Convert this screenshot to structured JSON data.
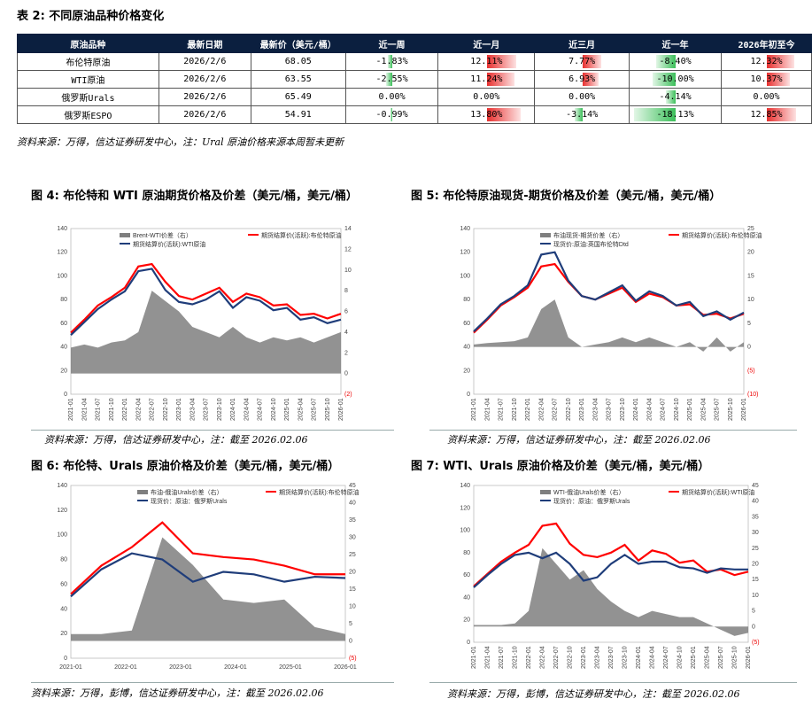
{
  "table": {
    "title": "表 2:  不同原油品种价格变化",
    "headers": [
      "原油品种",
      "最新日期",
      "最新价（美元/桶）",
      "近一周",
      "近一月",
      "近三月",
      "近一年",
      "2026年初至今"
    ],
    "rows": [
      {
        "name": "布伦特原油",
        "date": "2026/2/6",
        "price": "68.05",
        "changes": [
          "-1.83%",
          "12.11%",
          "7.77%",
          "-8.40%",
          "12.32%"
        ],
        "values": [
          -1.83,
          12.11,
          7.77,
          -8.4,
          12.32
        ]
      },
      {
        "name": "WTI原油",
        "date": "2026/2/6",
        "price": "63.55",
        "changes": [
          "-2.55%",
          "11.24%",
          "6.93%",
          "-10.00%",
          "10.37%"
        ],
        "values": [
          -2.55,
          11.24,
          6.93,
          -10.0,
          10.37
        ]
      },
      {
        "name": "俄罗斯Urals",
        "date": "2026/2/6",
        "price": "65.49",
        "changes": [
          "0.00%",
          "0.00%",
          "0.00%",
          "-4.14%",
          "0.00%"
        ],
        "values": [
          0,
          0,
          0,
          -4.14,
          0
        ]
      },
      {
        "name": "俄罗斯ESPO",
        "date": "2026/2/6",
        "price": "54.91",
        "changes": [
          "-0.99%",
          "13.80%",
          "-3.14%",
          "-18.13%",
          "12.85%"
        ],
        "values": [
          -0.99,
          13.8,
          -3.14,
          -18.13,
          12.85
        ]
      }
    ],
    "colors": {
      "positive": "#e8302f",
      "negative": "#3cbf5a"
    },
    "note": "资料来源：万得，信达证券研发中心，注：Ural 原油价格来源本周暂未更新"
  },
  "figures": [
    {
      "title": "图 4:  布伦特和  WTI  原油期货价格及价差（美元/桶，美元/桶）",
      "source": "资料来源：万得，信达证券研发中心，注：截至 2026.02.06"
    },
    {
      "title": "图 5:  布伦特原油现货-期货价格及价差（美元/桶，美元/桶）",
      "source": "资料来源：万得，信达证券研发中心，注：截至 2026.02.06"
    },
    {
      "title": "图 6:  布伦特、Urals 原油价格及价差（美元/桶，美元/桶）",
      "source": "资料来源：万得，彭博，信达证券研发中心，注：截至 2026.02.06"
    },
    {
      "title": "图 7:  WTI、Urals 原油价格及价差（美元/桶，美元/桶）",
      "source": "资料来源：万得，彭博，信达证券研发中心，注：截至 2026.02.06"
    }
  ],
  "chart_data": [
    {
      "type": "line",
      "legend": [
        "Brent-WTI价差（右）",
        "期货结算价(活跃):布伦特原油",
        "期货结算价(活跃):WTI原油"
      ],
      "colors": [
        "#7f7f7f",
        "#ff0000",
        "#1f3d7a"
      ],
      "ylim": [
        0,
        140
      ],
      "yticks": [
        "0",
        "20",
        "40",
        "60",
        "80",
        "100",
        "120",
        "140"
      ],
      "y2ticks": [
        "(2)",
        "0",
        "2",
        "4",
        "6",
        "8",
        "10",
        "12",
        "14"
      ],
      "xticks": [
        "2021-01",
        "2021-04",
        "2021-07",
        "2021-10",
        "2022-01",
        "2022-04",
        "2022-07",
        "2022-10",
        "2023-01",
        "2023-04",
        "2023-07",
        "2023-10",
        "2024-01",
        "2024-04",
        "2024-07",
        "2024-10",
        "2025-01",
        "2025-04",
        "2025-07",
        "2025-10",
        "2026-01"
      ],
      "series": [
        {
          "name": "期货结算价(活跃):布伦特原油",
          "values": [
            52,
            63,
            75,
            82,
            90,
            108,
            110,
            95,
            83,
            80,
            85,
            90,
            78,
            85,
            82,
            75,
            76,
            67,
            68,
            64,
            68
          ]
        },
        {
          "name": "期货结算价(活跃):WTI原油",
          "values": [
            50,
            61,
            72,
            80,
            87,
            104,
            106,
            88,
            78,
            76,
            80,
            87,
            73,
            82,
            79,
            71,
            73,
            63,
            65,
            60,
            63
          ]
        },
        {
          "name": "Brent-WTI价差（右）",
          "values": [
            2.5,
            2.8,
            2.5,
            3.0,
            3.2,
            4.0,
            8.0,
            7.0,
            6.0,
            4.5,
            4.0,
            3.5,
            4.5,
            3.5,
            3.0,
            3.5,
            3.2,
            3.5,
            3.0,
            3.5,
            4.0
          ]
        }
      ]
    },
    {
      "type": "line",
      "legend": [
        "布油现货-期货价差（右）",
        "期货结算价(活跃):布伦特原油",
        "现货价:原油:英国布伦特Dtd"
      ],
      "colors": [
        "#7f7f7f",
        "#ff0000",
        "#1f3d7a"
      ],
      "ylim": [
        0,
        140
      ],
      "yticks": [
        "0",
        "20",
        "40",
        "60",
        "80",
        "100",
        "120",
        "140"
      ],
      "y2ticks": [
        "(10)",
        "(5)",
        "0",
        "5",
        "10",
        "15",
        "20",
        "25"
      ],
      "xticks": [
        "2021-01",
        "2021-04",
        "2021-07",
        "2021-10",
        "2022-01",
        "2022-04",
        "2022-07",
        "2022-10",
        "2023-01",
        "2023-04",
        "2023-07",
        "2023-10",
        "2024-01",
        "2024-04",
        "2024-07",
        "2024-10",
        "2025-01",
        "2025-04",
        "2025-07",
        "2025-10",
        "2026-01"
      ],
      "series": [
        {
          "name": "期货结算价(活跃):布伦特原油",
          "values": [
            52,
            63,
            75,
            82,
            90,
            108,
            110,
            95,
            83,
            80,
            85,
            90,
            78,
            85,
            82,
            75,
            76,
            67,
            68,
            64,
            68
          ]
        },
        {
          "name": "现货价:原油:英国布伦特Dtd",
          "values": [
            53,
            64,
            76,
            83,
            92,
            118,
            120,
            96,
            83,
            80,
            86,
            92,
            79,
            87,
            83,
            75,
            78,
            66,
            70,
            63,
            69
          ]
        },
        {
          "name": "布油现货-期货价差（右）",
          "values": [
            0.5,
            0.8,
            1,
            1.2,
            2,
            8,
            10,
            2,
            0,
            0.5,
            1,
            2,
            1,
            2,
            1,
            0,
            1,
            -1,
            2,
            -1,
            1
          ]
        }
      ]
    },
    {
      "type": "line",
      "legend": [
        "布油-俄油Urals价差（右）",
        "期货结算价(活跃):布伦特原油",
        "现货价：原油：俄罗斯Urals"
      ],
      "colors": [
        "#7f7f7f",
        "#ff0000",
        "#1f3d7a"
      ],
      "ylim": [
        0,
        140
      ],
      "yticks": [
        "0",
        "20",
        "40",
        "60",
        "80",
        "100",
        "120",
        "140"
      ],
      "y2ticks": [
        "(5)",
        "0",
        "5",
        "10",
        "15",
        "20",
        "25",
        "30",
        "35",
        "40",
        "45"
      ],
      "xticks": [
        "2021-01",
        "2022-01",
        "2023-01",
        "2024-01",
        "2025-01",
        "2026-01"
      ],
      "series": [
        {
          "name": "期货结算价(活跃):布伦特原油",
          "values": [
            52,
            75,
            90,
            110,
            85,
            82,
            80,
            75,
            68,
            68
          ]
        },
        {
          "name": "现货价：原油：俄罗斯Urals",
          "values": [
            50,
            72,
            85,
            80,
            62,
            70,
            68,
            62,
            66,
            65
          ]
        },
        {
          "name": "布油-俄油Urals价差（右）",
          "values": [
            2,
            2,
            3,
            30,
            22,
            12,
            11,
            12,
            4,
            2
          ]
        }
      ]
    },
    {
      "type": "line",
      "legend": [
        "WTI-俄油Urals价差（右）",
        "期货结算价(活跃):WTI原油",
        "现货价：原油：俄罗斯Urals"
      ],
      "colors": [
        "#7f7f7f",
        "#ff0000",
        "#1f3d7a"
      ],
      "ylim": [
        0,
        140
      ],
      "yticks": [
        "0",
        "20",
        "40",
        "60",
        "80",
        "100",
        "120",
        "140"
      ],
      "y2ticks": [
        "(5)",
        "0",
        "5",
        "10",
        "15",
        "20",
        "25",
        "30",
        "35",
        "40",
        "45"
      ],
      "xticks": [
        "2021-01",
        "2021-04",
        "2021-07",
        "2021-10",
        "2022-01",
        "2022-04",
        "2022-07",
        "2022-10",
        "2023-01",
        "2023-04",
        "2023-07",
        "2023-10",
        "2024-01",
        "2024-04",
        "2024-07",
        "2024-10",
        "2025-01",
        "2025-04",
        "2025-07",
        "2025-10",
        "2026-01"
      ],
      "series": [
        {
          "name": "期货结算价(活跃):WTI原油",
          "values": [
            50,
            61,
            72,
            80,
            87,
            104,
            106,
            88,
            78,
            76,
            80,
            87,
            73,
            82,
            79,
            71,
            73,
            63,
            65,
            60,
            63
          ]
        },
        {
          "name": "现货价：原油：俄罗斯Urals",
          "values": [
            49,
            60,
            70,
            78,
            80,
            75,
            80,
            70,
            55,
            58,
            70,
            78,
            70,
            72,
            72,
            67,
            66,
            62,
            66,
            65,
            65
          ]
        },
        {
          "name": "WTI-俄油Urals价差（右）",
          "values": [
            0.5,
            0.5,
            0.5,
            1,
            5,
            25,
            20,
            15,
            18,
            12,
            8,
            5,
            3,
            5,
            4,
            3,
            3,
            1,
            -1,
            -3,
            -2
          ]
        }
      ]
    }
  ]
}
